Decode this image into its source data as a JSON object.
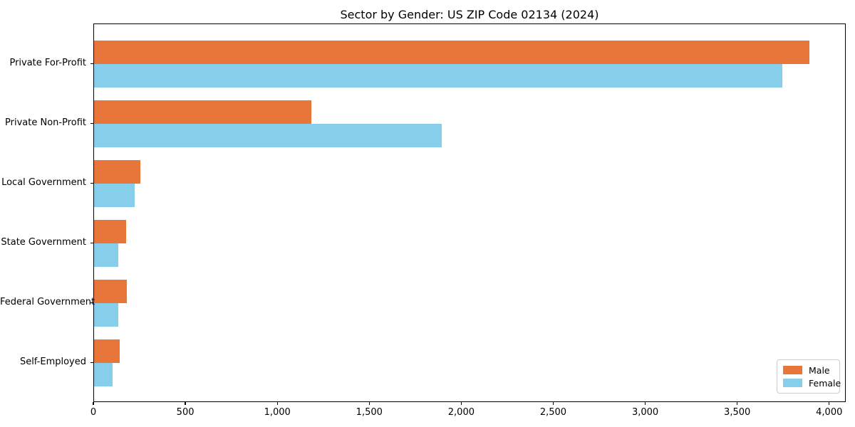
{
  "figure": {
    "title": "Sector by Gender: US ZIP Code 02134 (2024)"
  },
  "chart_data": {
    "type": "bar",
    "orientation": "horizontal",
    "title": "Sector by Gender: US ZIP Code 02134 (2024)",
    "categories": [
      "Private For-Profit",
      "Private Non-Profit",
      "Local Government",
      "State Government",
      "Federal Government",
      "Self-Employed"
    ],
    "series": [
      {
        "name": "Male",
        "color": "#E8763B",
        "values": [
          3890,
          1180,
          250,
          175,
          180,
          140
        ]
      },
      {
        "name": "Female",
        "color": "#87CEEB",
        "values": [
          3740,
          1890,
          220,
          130,
          130,
          100
        ]
      }
    ],
    "xlabel": "",
    "ylabel": "",
    "xlim": [
      0,
      4090
    ],
    "x_ticks": [
      0,
      500,
      1000,
      1500,
      2000,
      2500,
      3000,
      3500,
      4000
    ],
    "x_tick_labels": [
      "0",
      "500",
      "1,000",
      "1,500",
      "2,000",
      "2,500",
      "3,000",
      "3,500",
      "4,000"
    ],
    "grid": false,
    "legend": {
      "position": "lower-right",
      "entries": [
        {
          "label": "Male",
          "color": "#E8763B"
        },
        {
          "label": "Female",
          "color": "#87CEEB"
        }
      ]
    },
    "colors": {
      "background": "#ffffff",
      "spine": "#000000",
      "legend_border": "#cccccc"
    }
  }
}
